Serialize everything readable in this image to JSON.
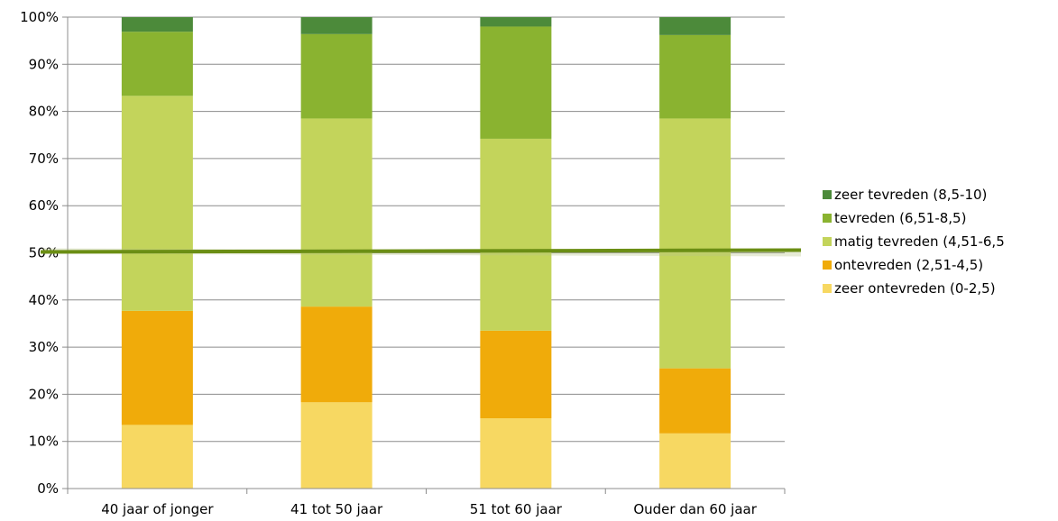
{
  "chart_data": {
    "type": "bar",
    "stacked": true,
    "percent": true,
    "categories": [
      "40 jaar of jonger",
      "41 tot 50 jaar",
      "51 tot 60 jaar",
      "Ouder dan 60 jaar"
    ],
    "series": [
      {
        "name": "zeer ontevreden (0-2,5)",
        "color": "#f7d862",
        "values": [
          13.5,
          18.3,
          14.9,
          11.7
        ]
      },
      {
        "name": "ontevreden (2,51-4,5)",
        "color": "#f0ab0a",
        "values": [
          24.2,
          20.3,
          18.6,
          13.8
        ]
      },
      {
        "name": "matig tevreden (4,51-6,5",
        "color": "#c3d45b",
        "values": [
          45.6,
          39.9,
          40.7,
          53.0
        ]
      },
      {
        "name": "tevreden (6,51-8,5)",
        "color": "#8ab330",
        "values": [
          13.6,
          17.9,
          23.8,
          17.7
        ]
      },
      {
        "name": "zeer tevreden (8,5-10)",
        "color": "#4c8a3a",
        "values": [
          3.1,
          3.6,
          2.0,
          3.8
        ]
      }
    ],
    "y_ticks": [
      "0%",
      "10%",
      "20%",
      "30%",
      "40%",
      "50%",
      "60%",
      "70%",
      "80%",
      "90%",
      "100%"
    ],
    "ylim": [
      0,
      100
    ],
    "reference_line": {
      "value": 50,
      "color": "#6b8e14"
    },
    "grid": true,
    "legend_position": "right",
    "title": "",
    "xlabel": "",
    "ylabel": ""
  }
}
